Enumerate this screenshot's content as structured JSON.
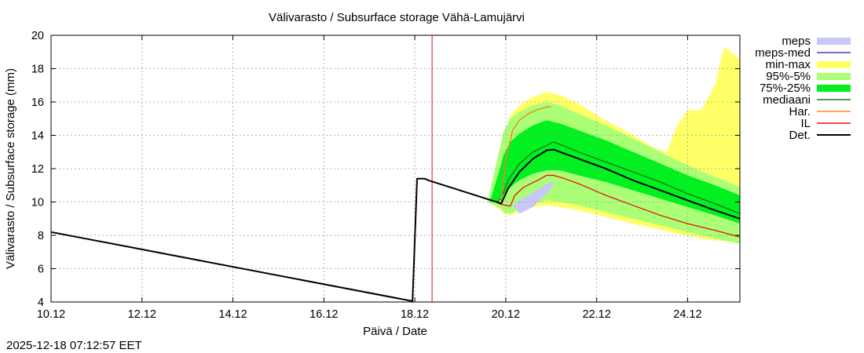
{
  "chart_data": {
    "type": "area",
    "title": "Välivarasto / Subsurface storage  Vähä-Lamujärvi",
    "xlabel": "Päivä / Date",
    "ylabel": "Välivarasto / Subsurface storage (mm)",
    "timestamp": "2025-12-18 07:12:57 EET",
    "xlim": [
      10,
      25.15
    ],
    "ylim": [
      4,
      20
    ],
    "xticks": [
      {
        "value": 10,
        "label": "10.12"
      },
      {
        "value": 12,
        "label": "12.12"
      },
      {
        "value": 14,
        "label": "14.12"
      },
      {
        "value": 16,
        "label": "16.12"
      },
      {
        "value": 18,
        "label": "18.12"
      },
      {
        "value": 20,
        "label": "20.12"
      },
      {
        "value": 22,
        "label": "22.12"
      },
      {
        "value": 24,
        "label": "24.12"
      }
    ],
    "yticks": [
      4,
      6,
      8,
      10,
      12,
      14,
      16,
      18,
      20
    ],
    "current_time": 18.38,
    "legend": [
      {
        "key": "meps",
        "label": "meps",
        "color": "#c8c8f5",
        "kind": "band"
      },
      {
        "key": "meps_med",
        "label": "meps-med",
        "color": "#4040c0",
        "kind": "line"
      },
      {
        "key": "min_max",
        "label": "min-max",
        "color": "#ffff66",
        "kind": "band"
      },
      {
        "key": "p95_5",
        "label": "95%-5%",
        "color": "#aaff77",
        "kind": "band"
      },
      {
        "key": "p75_25",
        "label": "75%-25%",
        "color": "#00f020",
        "kind": "band"
      },
      {
        "key": "mediaani",
        "label": "mediaani",
        "color": "#1a7a1a",
        "kind": "line"
      },
      {
        "key": "har",
        "label": "Har.",
        "color": "#ff8c1a",
        "kind": "line"
      },
      {
        "key": "il",
        "label": "IL",
        "color": "#ee1111",
        "kind": "line"
      },
      {
        "key": "det",
        "label": "Det.",
        "color": "#000000",
        "kind": "line"
      }
    ],
    "bands": {
      "min_max": {
        "x": [
          19.6,
          19.85,
          19.95,
          20.1,
          20.3,
          20.6,
          20.9,
          21.2,
          21.6,
          22.2,
          22.8,
          23.3,
          23.55,
          23.75,
          24.0,
          24.3,
          24.6,
          24.8,
          25.15
        ],
        "upper": [
          10.0,
          13.0,
          14.0,
          15.2,
          15.8,
          16.3,
          16.6,
          16.4,
          15.9,
          14.9,
          14.0,
          13.2,
          13.0,
          14.5,
          15.5,
          15.5,
          17.0,
          19.3,
          18.6
        ],
        "lower": [
          10.0,
          9.6,
          9.3,
          9.2,
          9.4,
          9.7,
          9.8,
          9.7,
          9.5,
          9.1,
          8.7,
          8.4,
          8.25,
          8.1,
          8.0,
          7.8,
          7.7,
          7.65,
          7.5
        ]
      },
      "p95_5": {
        "x": [
          19.6,
          19.85,
          19.95,
          20.1,
          20.3,
          20.6,
          20.9,
          21.2,
          21.6,
          22.2,
          22.8,
          23.4,
          24.0,
          24.6,
          25.15
        ],
        "upper": [
          10.0,
          13.0,
          14.2,
          15.0,
          15.4,
          15.8,
          16.0,
          15.8,
          15.3,
          14.6,
          13.8,
          13.0,
          12.2,
          11.5,
          10.9
        ],
        "lower": [
          10.0,
          9.7,
          9.4,
          9.3,
          9.6,
          9.9,
          10.1,
          10.0,
          9.8,
          9.4,
          9.0,
          8.6,
          8.2,
          7.8,
          7.5
        ]
      },
      "p75_25": {
        "x": [
          19.65,
          19.85,
          19.95,
          20.1,
          20.3,
          20.6,
          20.9,
          21.2,
          21.6,
          22.2,
          22.8,
          23.4,
          24.0,
          24.6,
          25.15
        ],
        "upper": [
          10.0,
          11.8,
          12.8,
          13.6,
          14.1,
          14.6,
          14.9,
          14.7,
          14.3,
          13.7,
          13.0,
          12.3,
          11.6,
          11.0,
          10.4
        ],
        "lower": [
          10.0,
          10.1,
          10.4,
          10.9,
          11.3,
          11.7,
          11.9,
          11.9,
          11.6,
          11.2,
          10.7,
          10.2,
          9.7,
          9.2,
          8.7
        ]
      },
      "meps": {
        "x": [
          20.15,
          20.3,
          20.6,
          20.9,
          21.05
        ],
        "upper": [
          9.8,
          10.1,
          10.6,
          11.1,
          11.2
        ],
        "lower": [
          9.8,
          9.3,
          9.7,
          10.5,
          11.0
        ]
      }
    },
    "series": [
      {
        "key": "det",
        "name": "Det.",
        "color": "#000000",
        "width": 2,
        "x": [
          10.0,
          17.95,
          18.05,
          18.22,
          18.3,
          19.8,
          19.9,
          20.05,
          20.3,
          20.6,
          20.9,
          21.05,
          21.2,
          21.6,
          22.2,
          22.8,
          23.4,
          24.0,
          24.6,
          25.15
        ],
        "y": [
          8.2,
          4.05,
          11.4,
          11.4,
          11.3,
          10.0,
          9.9,
          10.8,
          11.8,
          12.6,
          13.1,
          13.15,
          13.0,
          12.6,
          12.0,
          11.3,
          10.7,
          10.1,
          9.5,
          9.0
        ]
      },
      {
        "key": "mediaani",
        "name": "mediaani",
        "color": "#1a7a1a",
        "width": 1.3,
        "x": [
          19.8,
          19.9,
          20.05,
          20.3,
          20.6,
          20.9,
          21.05,
          21.2,
          21.6,
          22.2,
          22.8,
          23.4,
          24.0,
          24.6,
          25.15
        ],
        "y": [
          10.0,
          10.2,
          11.3,
          12.3,
          13.0,
          13.4,
          13.6,
          13.45,
          13.0,
          12.4,
          11.8,
          11.2,
          10.5,
          9.9,
          9.3
        ]
      },
      {
        "key": "har",
        "name": "Har.",
        "color": "#ff7a20",
        "width": 1.3,
        "x": [
          19.9,
          20.0,
          20.15,
          20.3,
          20.5,
          20.7,
          20.9,
          21.0
        ],
        "y": [
          10.0,
          12.5,
          14.3,
          14.9,
          15.3,
          15.55,
          15.7,
          15.7
        ]
      },
      {
        "key": "il",
        "name": "IL",
        "color": "#ee1111",
        "width": 1.3,
        "x": [
          19.85,
          20.0,
          20.1,
          20.2,
          20.4,
          20.7,
          20.9,
          21.05,
          21.3,
          21.6,
          22.2,
          22.8,
          23.4,
          24.0,
          24.6,
          25.15
        ],
        "y": [
          9.9,
          9.8,
          9.75,
          10.4,
          10.9,
          11.3,
          11.6,
          11.6,
          11.4,
          11.1,
          10.4,
          9.8,
          9.2,
          8.7,
          8.3,
          7.9
        ]
      },
      {
        "key": "meps_med",
        "name": "meps-med",
        "color": "#4040c0",
        "width": 1.3,
        "x": [],
        "y": []
      }
    ]
  }
}
